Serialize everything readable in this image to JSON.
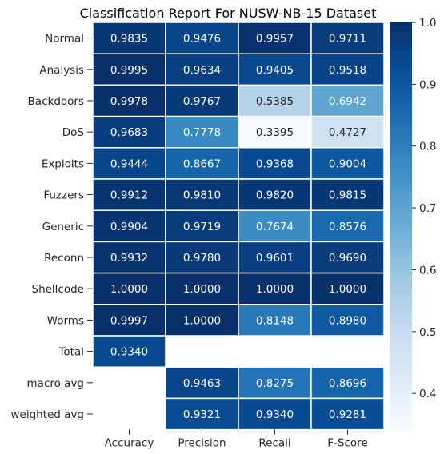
{
  "chart_data": {
    "type": "heatmap",
    "title": "Classification Report For NUSW-NB-15 Dataset",
    "xlabel": "",
    "ylabel": "",
    "columns": [
      "Accuracy",
      "Precision",
      "Recall",
      "F-Score"
    ],
    "rows": [
      "Normal",
      "Analysis",
      "Backdoors",
      "DoS",
      "Exploits",
      "Fuzzers",
      "Generic",
      "Reconn",
      "Shellcode",
      "Worms",
      "Total",
      "macro avg",
      "weighted avg"
    ],
    "values": [
      [
        0.9835,
        0.9476,
        0.9957,
        0.9711
      ],
      [
        0.9995,
        0.9634,
        0.9405,
        0.9518
      ],
      [
        0.9978,
        0.9767,
        0.5385,
        0.6942
      ],
      [
        0.9683,
        0.7778,
        0.3395,
        0.4727
      ],
      [
        0.9444,
        0.8667,
        0.9368,
        0.9004
      ],
      [
        0.9912,
        0.981,
        0.982,
        0.9815
      ],
      [
        0.9904,
        0.9719,
        0.7674,
        0.8576
      ],
      [
        0.9932,
        0.978,
        0.9601,
        0.969
      ],
      [
        1.0,
        1.0,
        1.0,
        1.0
      ],
      [
        0.9997,
        1.0,
        0.8148,
        0.898
      ],
      [
        0.934,
        null,
        null,
        null
      ],
      [
        null,
        0.9463,
        0.8275,
        0.8696
      ],
      [
        null,
        0.9321,
        0.934,
        0.9281
      ]
    ],
    "value_labels": [
      [
        "0.9835",
        "0.9476",
        "0.9957",
        "0.9711"
      ],
      [
        "0.9995",
        "0.9634",
        "0.9405",
        "0.9518"
      ],
      [
        "0.9978",
        "0.9767",
        "0.5385",
        "0.6942"
      ],
      [
        "0.9683",
        "0.7778",
        "0.3395",
        "0.4727"
      ],
      [
        "0.9444",
        "0.8667",
        "0.9368",
        "0.9004"
      ],
      [
        "0.9912",
        "0.9810",
        "0.9820",
        "0.9815"
      ],
      [
        "0.9904",
        "0.9719",
        "0.7674",
        "0.8576"
      ],
      [
        "0.9932",
        "0.9780",
        "0.9601",
        "0.9690"
      ],
      [
        "1.0000",
        "1.0000",
        "1.0000",
        "1.0000"
      ],
      [
        "0.9997",
        "1.0000",
        "0.8148",
        "0.8980"
      ],
      [
        "0.9340",
        "",
        "",
        ""
      ],
      [
        "",
        "0.9463",
        "0.8275",
        "0.8696"
      ],
      [
        "",
        "0.9321",
        "0.9340",
        "0.9281"
      ]
    ],
    "colorbar": {
      "min": 0.3395,
      "max": 1.0,
      "ticks": [
        0.4,
        0.5,
        0.6,
        0.7,
        0.8,
        0.9,
        1.0
      ],
      "tick_labels": [
        "0.4",
        "0.5",
        "0.6",
        "0.7",
        "0.8",
        "0.9",
        "1.0"
      ],
      "colormap": "Blues"
    },
    "grid": true,
    "legend": "colorbar-right"
  }
}
